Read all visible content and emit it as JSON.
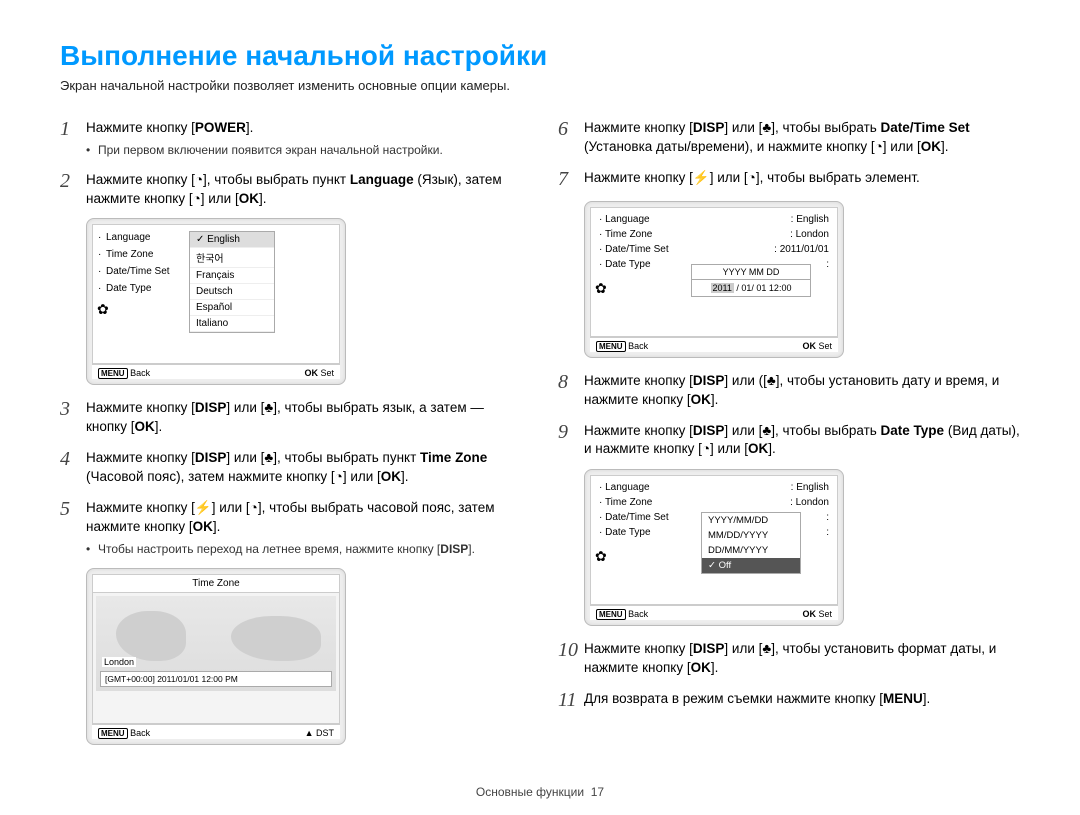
{
  "title": "Выполнение начальной настройки",
  "subtitle": "Экран начальной настройки позволяет изменить основные опции камеры.",
  "footer": {
    "label": "Основные функции",
    "page": "17"
  },
  "icons": {
    "disp": "DISP",
    "flower": "♣",
    "timer": "◔",
    "flash": "⚡",
    "ok": "OK",
    "menu": "MENU",
    "power": "POWER",
    "gear": "✿",
    "up": "▲",
    "check": "✓",
    "menubadge": "MENU"
  },
  "steps_left": [
    {
      "n": "1",
      "html": "Нажмите кнопку [<b>POWER</b>].",
      "sub": "При первом включении появится экран начальной настройки."
    },
    {
      "n": "2",
      "html": "Нажмите кнопку [◔], чтобы выбрать пункт <b>Language</b> (Язык), затем нажмите кнопку [◔] или [<b>OK</b>]."
    },
    {
      "n": "3",
      "html": "Нажмите кнопку [<b>DISP</b>] или [♣], чтобы выбрать язык, а затем — кнопку [<b>OK</b>]."
    },
    {
      "n": "4",
      "html": "Нажмите кнопку [<b>DISP</b>] или [♣], чтобы выбрать пункт <b>Time Zone</b> (Часовой пояс), затем нажмите кнопку [◔] или [<b>OK</b>]."
    },
    {
      "n": "5",
      "html": "Нажмите кнопку [⚡] или [◔], чтобы выбрать часовой пояс, затем нажмите кнопку [<b>OK</b>].",
      "sub": "Чтобы настроить переход на летнее время, нажмите кнопку [<b>DISP</b>]."
    }
  ],
  "steps_right": [
    {
      "n": "6",
      "html": "Нажмите кнопку [<b>DISP</b>] или [♣], чтобы выбрать <b>Date/Time Set</b> (Установка даты/времени), и нажмите кнопку [◔] или [<b>OK</b>]."
    },
    {
      "n": "7",
      "html": "Нажмите кнопку [⚡] или [◔], чтобы выбрать элемент."
    },
    {
      "n": "8",
      "html": "Нажмите кнопку [<b>DISP</b>] или ([♣], чтобы установить дату и время, и нажмите кнопку [<b>OK</b>]."
    },
    {
      "n": "9",
      "html": "Нажмите кнопку [<b>DISP</b>] или [♣], чтобы выбрать <b>Date Type</b> (Вид даты), и нажмите кнопку [◔] или [<b>OK</b>]."
    },
    {
      "n": "10",
      "html": "Нажмите кнопку [<b>DISP</b>] или [♣], чтобы установить формат даты, и нажмите кнопку [<b>OK</b>]."
    },
    {
      "n": "11",
      "html": "Для возврата в режим съемки нажмите кнопку [<b>MENU</b>]."
    }
  ],
  "lcd_lang": {
    "menu": [
      "Language",
      "Time Zone",
      "Date/Time Set",
      "Date Type"
    ],
    "options": [
      "English",
      "한국어",
      "Français",
      "Deutsch",
      "Español",
      "Italiano"
    ],
    "selected": 0,
    "foot_left": "Back",
    "foot_right": "Set"
  },
  "lcd_tz": {
    "title": "Time Zone",
    "city": "London",
    "band": "[GMT+00:00]   2011/01/01   12:00 PM",
    "foot_left": "Back",
    "foot_right": "DST"
  },
  "lcd_dt": {
    "rows": [
      {
        "lbl": "Language",
        "val": "English"
      },
      {
        "lbl": "Time Zone",
        "val": "London"
      },
      {
        "lbl": "Date/Time Set",
        "val": "2011/01/01"
      },
      {
        "lbl": "Date Type",
        "val": ""
      }
    ],
    "popup_hdr": "YYYY MM DD",
    "popup_dt_pre": "2011",
    "popup_dt_post": " / 01/ 01  12:00",
    "foot_left": "Back",
    "foot_right": "Set"
  },
  "lcd_type": {
    "rows": [
      {
        "lbl": "Language",
        "val": "English"
      },
      {
        "lbl": "Time Zone",
        "val": "London"
      },
      {
        "lbl": "Date/Time Set",
        "val": ""
      },
      {
        "lbl": "Date Type",
        "val": ""
      }
    ],
    "options": [
      "YYYY/MM/DD",
      "MM/DD/YYYY",
      "DD/MM/YYYY",
      "Off"
    ],
    "selected": 3,
    "foot_left": "Back",
    "foot_right": "Set"
  }
}
